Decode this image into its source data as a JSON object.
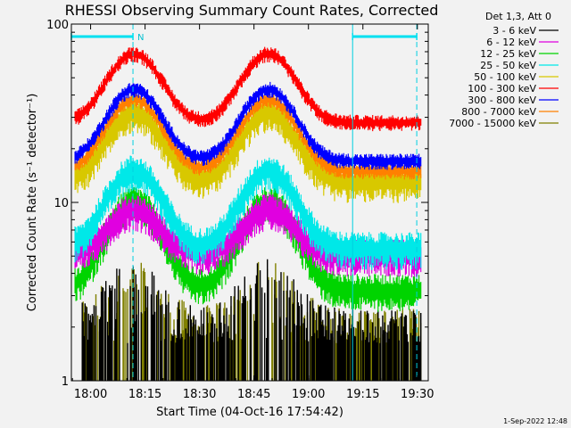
{
  "chart_data": {
    "type": "line",
    "title": "RHESSI Observing Summary Count Rates, Corrected",
    "xlabel": "Start Time (04-Oct-16 17:54:42)",
    "ylabel": "Corrected Count Rate (s⁻¹ detector⁻¹)",
    "x_ticks": [
      "18:00",
      "18:15",
      "18:30",
      "18:45",
      "19:00",
      "19:15",
      "19:30"
    ],
    "y_ticks": [
      "1",
      "10",
      "100"
    ],
    "y_scale": "log",
    "ylim": [
      1,
      100
    ],
    "grid": false,
    "legend_title": "Det 1,3, Att 0",
    "legend_position": "top-right, outside plot",
    "flag_markers": [
      {
        "label": "N",
        "start": "17:54:42",
        "end": "18:11:40"
      },
      {
        "label": "",
        "start": "19:12:10",
        "end": "19:29:50"
      }
    ],
    "vertical_markers": [
      "18:11:40",
      "19:12:10",
      "19:29:50"
    ],
    "peak_times": [
      "18:12",
      "18:49"
    ],
    "series": [
      {
        "name": "3 - 6 keV",
        "color": "#000000",
        "baseline": 1.8,
        "peak": 1.8,
        "noise": "sparse"
      },
      {
        "name": "6 - 12 keV",
        "color": "#e000e0",
        "baseline": 5.0,
        "peak": 9.0,
        "noise": "medium"
      },
      {
        "name": "12 - 25 keV",
        "color": "#00d400",
        "baseline": 3.2,
        "peak": 10.0,
        "noise": "medium"
      },
      {
        "name": "25 - 50 keV",
        "color": "#00e8e8",
        "baseline": 5.5,
        "peak": 15.0,
        "noise": "medium"
      },
      {
        "name": "50 - 100 keV",
        "color": "#d8c800",
        "baseline": 13.0,
        "peak": 32.0,
        "noise": "medium"
      },
      {
        "name": "100 - 300 keV",
        "color": "#ff0000",
        "baseline": 28.0,
        "peak": 68.0,
        "noise": "low"
      },
      {
        "name": "300 - 800 keV",
        "color": "#0000ff",
        "baseline": 17.0,
        "peak": 43.0,
        "noise": "low"
      },
      {
        "name": "800 - 7000 keV",
        "color": "#ff8000",
        "baseline": 15.0,
        "peak": 38.0,
        "noise": "low"
      },
      {
        "name": "7000 - 15000 keV",
        "color": "#808000",
        "baseline": 1.8,
        "peak": 1.8,
        "noise": "sparse"
      }
    ]
  },
  "timestamp": "1-Sep-2022 12:48"
}
